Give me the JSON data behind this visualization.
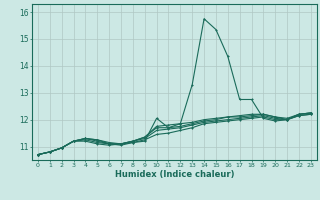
{
  "title": "",
  "xlabel": "Humidex (Indice chaleur)",
  "ylabel": "",
  "background_color": "#cce8e4",
  "grid_color": "#b0c8c4",
  "line_color": "#1a6b5a",
  "xlim": [
    -0.5,
    23.5
  ],
  "ylim": [
    10.5,
    16.3
  ],
  "yticks": [
    11,
    12,
    13,
    14,
    15,
    16
  ],
  "xticks": [
    0,
    1,
    2,
    3,
    4,
    5,
    6,
    7,
    8,
    9,
    10,
    11,
    12,
    13,
    14,
    15,
    16,
    17,
    18,
    19,
    20,
    21,
    22,
    23
  ],
  "series": [
    [
      10.7,
      10.8,
      10.95,
      11.2,
      11.2,
      11.1,
      11.05,
      11.1,
      11.15,
      11.2,
      12.05,
      11.7,
      11.85,
      13.3,
      15.75,
      15.35,
      14.35,
      12.75,
      12.75,
      12.05,
      11.95,
      12.0,
      12.2,
      12.25
    ],
    [
      10.7,
      10.8,
      10.95,
      11.2,
      11.25,
      11.15,
      11.1,
      11.05,
      11.15,
      11.25,
      11.45,
      11.5,
      11.6,
      11.7,
      11.85,
      11.9,
      11.95,
      12.0,
      12.05,
      12.1,
      12.0,
      12.0,
      12.15,
      12.2
    ],
    [
      10.7,
      10.8,
      10.95,
      11.2,
      11.3,
      11.2,
      11.1,
      11.1,
      11.2,
      11.3,
      11.6,
      11.65,
      11.7,
      11.8,
      11.9,
      11.95,
      12.0,
      12.05,
      12.1,
      12.15,
      12.05,
      12.0,
      12.15,
      12.2
    ],
    [
      10.7,
      10.8,
      10.95,
      11.2,
      11.3,
      11.25,
      11.15,
      11.1,
      11.2,
      11.35,
      11.7,
      11.7,
      11.75,
      11.85,
      11.95,
      12.0,
      12.1,
      12.1,
      12.15,
      12.2,
      12.1,
      12.05,
      12.2,
      12.25
    ],
    [
      10.7,
      10.8,
      10.95,
      11.2,
      11.3,
      11.25,
      11.1,
      11.1,
      11.2,
      11.35,
      11.75,
      11.8,
      11.85,
      11.9,
      12.0,
      12.05,
      12.1,
      12.15,
      12.2,
      12.2,
      12.1,
      12.0,
      12.2,
      12.25
    ]
  ]
}
